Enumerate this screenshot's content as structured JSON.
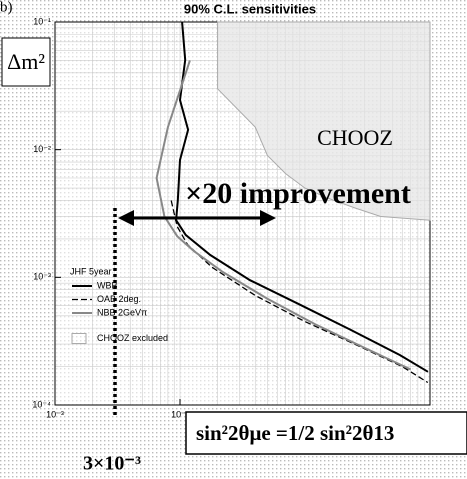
{
  "chart_data": {
    "type": "line",
    "panel": "b)",
    "title": "90% C.L. sensitivities",
    "y_label": "Δm²",
    "x_label": "sin²2θμe =1/2 sin²2θ13",
    "annotations": [
      "CHOOZ",
      "×20 improvement",
      "3×10⁻³"
    ],
    "legend_title": "JHF 5year",
    "log_x": true,
    "log_y": true,
    "grid": true,
    "xlim": [
      0.001,
      1
    ],
    "ylim": [
      0.0001,
      0.1
    ],
    "xticks": [
      {
        "value": 0.001,
        "label": "10⁻³"
      },
      {
        "value": 0.01,
        "label": "10⁻²"
      }
    ],
    "yticks": [
      {
        "value": 0.1,
        "label": "10⁻¹"
      },
      {
        "value": 0.01,
        "label": "10⁻²"
      },
      {
        "value": 0.001,
        "label": "10⁻³"
      },
      {
        "value": 0.0001,
        "label": "10⁻⁴"
      }
    ],
    "series": [
      {
        "name": "WBB",
        "color": "#000000",
        "style": "solid",
        "x": [
          0.0104,
          0.011,
          0.01,
          0.0116,
          0.01,
          0.0096,
          0.0093,
          0.0111,
          0.0174,
          0.0363,
          0.0912,
          0.229,
          0.575,
          0.964
        ],
        "y": [
          0.1,
          0.0504,
          0.0245,
          0.0143,
          0.0083,
          0.004,
          0.0028,
          0.00215,
          0.0015,
          0.00095,
          0.00061,
          0.00039,
          0.000246,
          0.000182
        ]
      },
      {
        "name": "OAB 2deg.",
        "color": "#000000",
        "style": "dashed",
        "x": [
          0.0085,
          0.0095,
          0.0115,
          0.018,
          0.04,
          0.1,
          0.25,
          0.6,
          0.96
        ],
        "y": [
          0.004,
          0.0025,
          0.0018,
          0.0012,
          0.00072,
          0.00045,
          0.0003,
          0.0002,
          0.00015
        ]
      },
      {
        "name": "NBB 2GeVπ",
        "color": "#888888",
        "style": "solid",
        "x": [
          0.012,
          0.008,
          0.0065,
          0.0075,
          0.0095,
          0.013,
          0.022,
          0.05,
          0.12,
          0.3,
          0.7
        ],
        "y": [
          0.05,
          0.015,
          0.006,
          0.003,
          0.0021,
          0.0016,
          0.0011,
          0.00068,
          0.00043,
          0.00028,
          0.00019
        ]
      },
      {
        "name": "CHOOZ excluded",
        "color": "#aaaaaa",
        "style": "region",
        "x": [
          0.02,
          0.02,
          0.04,
          0.05,
          0.07,
          0.1,
          0.15,
          0.25,
          0.4,
          1,
          1
        ],
        "y": [
          0.1,
          0.03,
          0.015,
          0.009,
          0.0065,
          0.005,
          0.0042,
          0.0035,
          0.003,
          0.0028,
          0.1
        ]
      }
    ]
  }
}
